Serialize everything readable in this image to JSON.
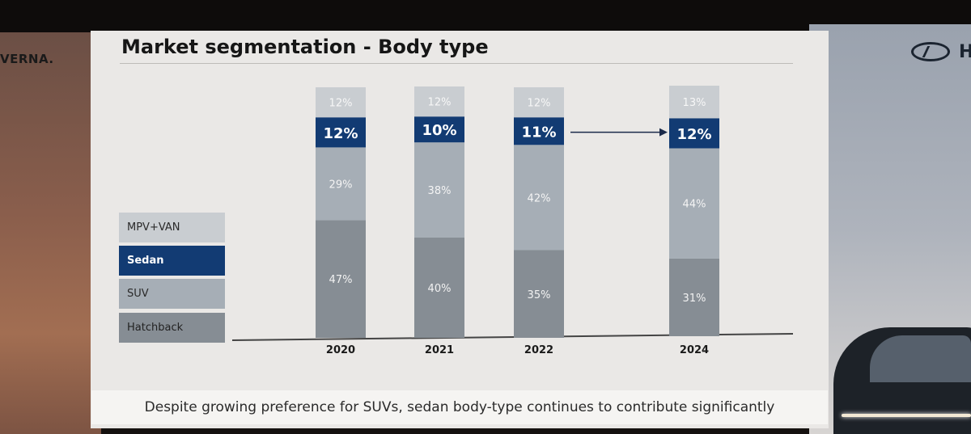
{
  "slide": {
    "title": "Market segmentation - Body type",
    "footer": "Despite growing preference for SUVs, sedan body-type continues to contribute significantly",
    "left_brand": "VERNA.",
    "right_brand": "H"
  },
  "colors": {
    "mpv_van": "#c9cdd1",
    "sedan": "#123b73",
    "suv": "#a6aeb6",
    "hatchback": "#868d94"
  },
  "chart_data": {
    "type": "bar",
    "stacked": true,
    "percent": true,
    "categories": [
      "2020",
      "2021",
      "2022",
      "2024"
    ],
    "series": [
      {
        "name": "Hatchback",
        "values": [
          47,
          40,
          35,
          31
        ]
      },
      {
        "name": "SUV",
        "values": [
          29,
          38,
          42,
          44
        ]
      },
      {
        "name": "Sedan",
        "values": [
          12,
          10,
          11,
          12
        ]
      },
      {
        "name": "MPV+VAN",
        "values": [
          12,
          12,
          12,
          13
        ]
      }
    ],
    "legend": [
      "MPV+VAN",
      "Sedan",
      "SUV",
      "Hatchback"
    ],
    "legend_position": "left",
    "annotation": "arrow from 2022 sedan to 2024 sedan",
    "grid": false,
    "title": "Market segmentation - Body type"
  }
}
